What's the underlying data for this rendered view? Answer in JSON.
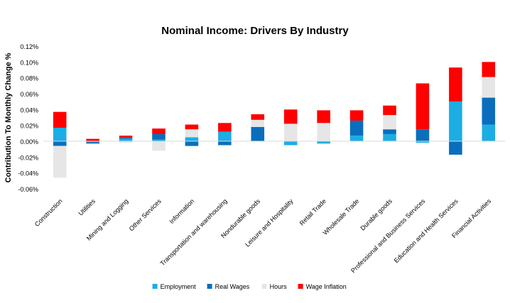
{
  "chart_data": {
    "type": "bar",
    "stacked": true,
    "title": "Nominal Income: Drivers By Industry",
    "xlabel": "",
    "ylabel": "Contribution To Monthly Change %",
    "ylim": [
      -0.06,
      0.12
    ],
    "y_ticks": [
      -0.06,
      -0.04,
      -0.02,
      0.0,
      0.02,
      0.04,
      0.06,
      0.08,
      0.1,
      0.12
    ],
    "y_tick_labels": [
      "-0.06%",
      "-0.04%",
      "-0.02%",
      "0.00%",
      "0.02%",
      "0.04%",
      "0.06%",
      "0.08%",
      "0.10%",
      "0.12%"
    ],
    "grid": false,
    "legend_position": "bottom",
    "categories": [
      "Construction",
      "Utilities",
      "Mining and Logging",
      "Other Services",
      "Information",
      "Transportation and warehousing",
      "Nondurable goods",
      "Leisure and Hospitality",
      "Retail Trade",
      "Wholesale Trade",
      "Durable goods",
      "Professional and Business Services",
      "Education and Health Services",
      "Financial Activities"
    ],
    "series": [
      {
        "name": "Employment",
        "color": "#1CADE4",
        "values": [
          0.017,
          -0.001,
          0.003,
          0.002,
          0.005,
          0.012,
          0.0,
          -0.005,
          -0.003,
          0.007,
          0.009,
          -0.002,
          0.05,
          0.021
        ]
      },
      {
        "name": "Real Wages",
        "color": "#0A6EBD",
        "values": [
          -0.006,
          -0.002,
          0.002,
          0.007,
          -0.006,
          -0.005,
          0.018,
          0.0,
          0.0,
          0.019,
          0.006,
          0.015,
          -0.017,
          0.034
        ]
      },
      {
        "name": "Hours",
        "color": "#E6E6E6",
        "values": [
          -0.04,
          0.0,
          -0.002,
          -0.012,
          0.01,
          0.0,
          0.009,
          0.022,
          0.023,
          0.0,
          0.018,
          0.0,
          0.0,
          0.026
        ]
      },
      {
        "name": "Wage Inflation",
        "color": "#FF0000",
        "values": [
          0.02,
          0.003,
          0.002,
          0.007,
          0.006,
          0.011,
          0.007,
          0.018,
          0.016,
          0.013,
          0.012,
          0.058,
          0.043,
          0.019
        ]
      }
    ]
  }
}
